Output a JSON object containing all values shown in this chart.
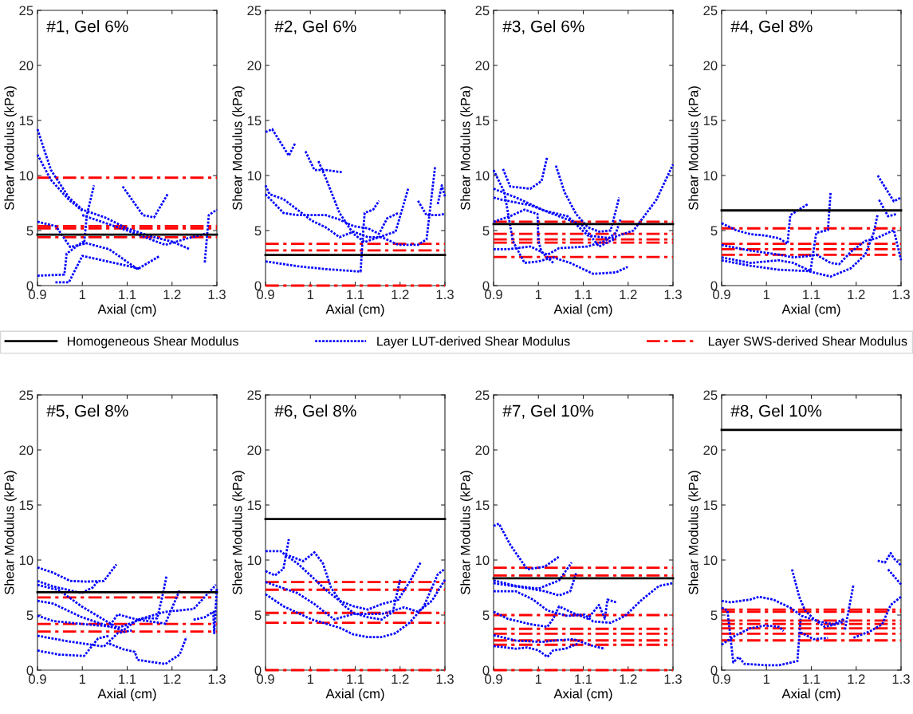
{
  "chart_data": [
    {
      "type": "line",
      "title": "#1, Gel 6%",
      "xlabel": "Axial (cm)",
      "ylabel": "Shear Modulus (kPa)",
      "xlim": [
        0.9,
        1.3
      ],
      "ylim": [
        0,
        25
      ],
      "xticks": [
        0.9,
        1,
        1.1,
        1.2,
        1.3
      ],
      "yticks": [
        0,
        5,
        10,
        15,
        20,
        25
      ],
      "grid": false,
      "legend": "bottom",
      "series": [
        {
          "name": "Homogeneous Shear Modulus",
          "color": "#000000",
          "line_style": "solid",
          "x": [
            0.9,
            1.3
          ],
          "values": [
            4.63,
            4.63
          ]
        },
        {
          "name": "Layer LUT-derived Shear Modulus",
          "color": "#0000ff",
          "line_style": "dotted",
          "x": [
            0.9,
            0.93,
            0.97,
            1.0,
            1.05,
            1.1,
            1.15,
            1.2,
            1.24
          ],
          "values": [
            14.2,
            10.5,
            8.0,
            6.9,
            6.2,
            5.2,
            4.5,
            4.0,
            3.3
          ]
        },
        {
          "color": "#0000ff",
          "line_style": "dotted",
          "x": [
            0.9,
            0.93,
            0.97,
            1.0
          ],
          "values": [
            11.9,
            9.6,
            7.8,
            6.8
          ]
        },
        {
          "color": "#0000ff",
          "line_style": "dotted",
          "x": [
            0.9,
            0.941,
            0.973,
            1.004,
            1.01,
            1.026
          ],
          "values": [
            5.8,
            5.4,
            3.5,
            3.8,
            6.4,
            9.1
          ]
        },
        {
          "color": "#0000ff",
          "line_style": "dotted",
          "x": [
            0.9,
            0.96,
            0.965,
            1.0,
            1.06,
            1.123,
            1.173
          ],
          "values": [
            0.9,
            1.0,
            2.9,
            3.95,
            3.3,
            1.5,
            2.7
          ]
        },
        {
          "color": "#0000ff",
          "line_style": "dotted",
          "x": [
            0.94,
            0.97,
            1.0,
            1.1,
            1.13
          ],
          "values": [
            0.3,
            0.3,
            2.7,
            1.8,
            1.5
          ]
        },
        {
          "color": "#0000ff",
          "line_style": "dotted",
          "x": [
            1.09,
            1.135,
            1.16,
            1.19
          ],
          "values": [
            9.0,
            6.4,
            6.2,
            8.3
          ]
        },
        {
          "color": "#0000ff",
          "line_style": "dotted",
          "x": [
            1.0,
            1.1,
            1.185,
            1.235,
            1.273
          ],
          "values": [
            6.4,
            5.0,
            3.7,
            4.3,
            4.7
          ]
        },
        {
          "color": "#0000ff",
          "line_style": "dotted",
          "x": [
            1.273,
            1.282,
            1.3
          ],
          "values": [
            2.1,
            6.4,
            6.9
          ]
        },
        {
          "name": "Layer SWS-derived Shear Modulus",
          "color": "#ff0000",
          "line_style": "dash-dot",
          "x": [
            0.9,
            1.3
          ],
          "values": [
            9.8,
            9.8
          ]
        },
        {
          "color": "#ff0000",
          "line_style": "dash-dot",
          "x": [
            0.9,
            1.3
          ],
          "values": [
            5.4,
            5.4
          ]
        },
        {
          "color": "#ff0000",
          "line_style": "dash-dot",
          "x": [
            0.9,
            1.3
          ],
          "values": [
            5.2,
            5.2
          ]
        },
        {
          "color": "#ff0000",
          "line_style": "dash-dot",
          "x": [
            0.9,
            1.3
          ],
          "values": [
            4.4,
            4.4
          ]
        }
      ]
    },
    {
      "type": "line",
      "title": "#2, Gel 6%",
      "xlabel": "Axial (cm)",
      "ylabel": "Shear Modulus (kPa)",
      "xlim": [
        0.9,
        1.3
      ],
      "ylim": [
        0,
        25
      ],
      "xticks": [
        0.9,
        1,
        1.1,
        1.2,
        1.3
      ],
      "yticks": [
        0,
        5,
        10,
        15,
        20,
        25
      ],
      "grid": false,
      "series": [
        {
          "color": "#000000",
          "line_style": "solid",
          "x": [
            0.9,
            1.3
          ],
          "values": [
            2.78,
            2.78
          ]
        },
        {
          "color": "#0000ff",
          "line_style": "dotted",
          "x": [
            0.9,
            0.915,
            0.952,
            0.967
          ],
          "values": [
            13.95,
            14.2,
            11.8,
            13.0
          ]
        },
        {
          "color": "#0000ff",
          "line_style": "dotted",
          "x": [
            0.989,
            1.009,
            1.034,
            1.07
          ],
          "values": [
            12.2,
            10.5,
            10.5,
            10.3
          ]
        },
        {
          "color": "#0000ff",
          "line_style": "dotted",
          "x": [
            1.018,
            1.034,
            1.065,
            1.096,
            1.121,
            1.153,
            1.19,
            1.218
          ],
          "values": [
            11.3,
            9.8,
            6.6,
            4.7,
            3.95,
            4.4,
            4.9,
            8.8
          ]
        },
        {
          "color": "#0000ff",
          "line_style": "dotted",
          "x": [
            0.9,
            0.971,
            1.034,
            1.112,
            1.116,
            1.121,
            1.14,
            1.153
          ],
          "values": [
            2.2,
            1.76,
            1.5,
            1.27,
            3.95,
            6.6,
            6.9,
            7.7
          ]
        },
        {
          "color": "#0000ff",
          "line_style": "dotted",
          "x": [
            0.9,
            0.909,
            0.94,
            0.971,
            1.003,
            1.034,
            1.065,
            1.096,
            1.128,
            1.159,
            1.196,
            1.24,
            1.259,
            1.278
          ],
          "values": [
            9.1,
            8.3,
            7.85,
            6.9,
            5.9,
            5.3,
            4.4,
            4.9,
            4.4,
            4.4,
            3.7,
            3.7,
            4.2,
            10.8
          ]
        },
        {
          "color": "#0000ff",
          "line_style": "dotted",
          "x": [
            0.9,
            0.94,
            0.971,
            1.034,
            1.065,
            1.096,
            1.128,
            1.153,
            1.171,
            1.196
          ],
          "values": [
            8.3,
            6.6,
            6.4,
            6.4,
            6.0,
            5.4,
            5.2,
            4.7,
            6.1,
            6.6
          ]
        },
        {
          "color": "#0000ff",
          "line_style": "dotted",
          "x": [
            1.24,
            1.259,
            1.284,
            1.3
          ],
          "values": [
            7.7,
            6.4,
            6.4,
            6.5
          ]
        },
        {
          "color": "#0000ff",
          "line_style": "dotted",
          "x": [
            1.284,
            1.293,
            1.3
          ],
          "values": [
            7.4,
            9.1,
            8.1
          ]
        },
        {
          "color": "#ff0000",
          "line_style": "dash-dot",
          "x": [
            0.9,
            1.3
          ],
          "values": [
            3.8,
            3.8
          ]
        },
        {
          "color": "#ff0000",
          "line_style": "dash-dot",
          "x": [
            0.9,
            1.3
          ],
          "values": [
            3.2,
            3.2
          ]
        },
        {
          "color": "#ff0000",
          "line_style": "dash-dot",
          "x": [
            0.9,
            1.3
          ],
          "values": [
            0,
            0
          ]
        }
      ]
    },
    {
      "type": "line",
      "title": "#3, Gel 6%",
      "xlabel": "Axial (cm)",
      "ylabel": "Shear Modulus (kPa)",
      "xlim": [
        0.9,
        1.3
      ],
      "ylim": [
        0,
        25
      ],
      "xticks": [
        0.9,
        1,
        1.1,
        1.2,
        1.3
      ],
      "yticks": [
        0,
        5,
        10,
        15,
        20,
        25
      ],
      "grid": false,
      "series": [
        {
          "color": "#000000",
          "line_style": "solid",
          "x": [
            0.9,
            1.3
          ],
          "values": [
            5.59,
            5.59
          ]
        },
        {
          "color": "#0000ff",
          "line_style": "dotted",
          "x": [
            0.9,
            0.924,
            0.943,
            0.969,
            1.0,
            1.033,
            1.071,
            1.122,
            1.173,
            1.199
          ],
          "values": [
            10.5,
            8.5,
            4.05,
            2.06,
            2.2,
            2.56,
            2.06,
            1.07,
            1.2,
            1.7
          ]
        },
        {
          "color": "#0000ff",
          "line_style": "dotted",
          "x": [
            0.921,
            0.937,
            0.982,
            1.007,
            1.019
          ],
          "values": [
            10.6,
            9.0,
            8.8,
            9.5,
            11.6
          ]
        },
        {
          "color": "#0000ff",
          "line_style": "dotted",
          "x": [
            1.039,
            1.058,
            1.084,
            1.11,
            1.135,
            1.161,
            1.18
          ],
          "values": [
            10.9,
            8.5,
            6.5,
            5.3,
            4.9,
            5.0,
            8.0
          ]
        },
        {
          "color": "#0000ff",
          "line_style": "dotted",
          "x": [
            0.9,
            0.95,
            1.014,
            1.065,
            1.11,
            1.161,
            1.212,
            1.263,
            1.3
          ],
          "values": [
            8.8,
            8.0,
            6.8,
            6.3,
            4.55,
            4.3,
            5.0,
            7.8,
            11.0
          ]
        },
        {
          "color": "#0000ff",
          "line_style": "dotted",
          "x": [
            0.9,
            0.918,
            0.982,
            1.033,
            1.097,
            1.135,
            1.173
          ],
          "values": [
            8.0,
            7.8,
            7.3,
            6.5,
            5.5,
            3.55,
            4.3
          ]
        },
        {
          "color": "#0000ff",
          "line_style": "dotted",
          "x": [
            0.9,
            0.931,
            0.982,
            1.02,
            1.046,
            1.11,
            1.148,
            1.173,
            1.183
          ],
          "values": [
            3.3,
            3.3,
            3.55,
            2.8,
            3.4,
            3.55,
            4.05,
            4.8,
            6.0
          ]
        },
        {
          "color": "#0000ff",
          "line_style": "dotted",
          "x": [
            0.9,
            0.937,
            0.969,
            0.998,
            1.0,
            1.007,
            1.033
          ],
          "values": [
            5.8,
            6.3,
            6.9,
            6.5,
            4.05,
            3.05,
            2.06
          ]
        },
        {
          "color": "#ff0000",
          "line_style": "dash-dot",
          "x": [
            0.9,
            1.3
          ],
          "values": [
            5.8,
            5.8
          ]
        },
        {
          "color": "#ff0000",
          "line_style": "dash-dot",
          "x": [
            0.9,
            1.3
          ],
          "values": [
            4.7,
            4.7
          ]
        },
        {
          "color": "#ff0000",
          "line_style": "dash-dot",
          "x": [
            0.9,
            1.3
          ],
          "values": [
            4.2,
            4.2
          ]
        },
        {
          "color": "#ff0000",
          "line_style": "dash-dot",
          "x": [
            0.9,
            1.3
          ],
          "values": [
            3.9,
            3.9
          ]
        },
        {
          "color": "#ff0000",
          "line_style": "dash-dot",
          "x": [
            0.9,
            1.3
          ],
          "values": [
            2.6,
            2.6
          ]
        }
      ]
    },
    {
      "type": "line",
      "title": "#4, Gel 8%",
      "xlabel": "Axial (cm)",
      "ylabel": "Shear Modulus (kPa)",
      "xlim": [
        0.9,
        1.3
      ],
      "ylim": [
        0,
        25
      ],
      "xticks": [
        0.9,
        1,
        1.1,
        1.2,
        1.3
      ],
      "yticks": [
        0,
        5,
        10,
        15,
        20,
        25
      ],
      "grid": false,
      "series": [
        {
          "color": "#000000",
          "line_style": "solid",
          "x": [
            0.9,
            1.3
          ],
          "values": [
            6.83,
            6.83
          ]
        },
        {
          "color": "#0000ff",
          "line_style": "dotted",
          "x": [
            0.9,
            0.932,
            0.964,
            0.996,
            1.028,
            1.047,
            1.053,
            1.092
          ],
          "values": [
            5.67,
            5.04,
            4.67,
            4.55,
            4.3,
            3.8,
            6.4,
            7.4
          ]
        },
        {
          "color": "#0000ff",
          "line_style": "dotted",
          "x": [
            0.9,
            0.964,
            1.028,
            1.06,
            1.092,
            1.111,
            1.143,
            1.162,
            1.188,
            1.22,
            1.245,
            1.284,
            1.3
          ],
          "values": [
            3.68,
            3.18,
            2.81,
            2.56,
            2.68,
            2.81,
            2.06,
            1.94,
            3.06,
            4.05,
            4.3,
            5.04,
            2.3
          ]
        },
        {
          "color": "#0000ff",
          "line_style": "dotted",
          "x": [
            0.9,
            0.964,
            1.028,
            1.06,
            1.098,
            1.111,
            1.137,
            1.143
          ],
          "values": [
            2.56,
            2.06,
            2.3,
            2.06,
            1.32,
            4.8,
            5.04,
            8.5
          ]
        },
        {
          "color": "#0000ff",
          "line_style": "dotted",
          "x": [
            0.9,
            0.964,
            1.028,
            1.092,
            1.143,
            1.188,
            1.22,
            1.239,
            1.248
          ],
          "values": [
            2.3,
            1.8,
            1.44,
            1.32,
            0.82,
            1.57,
            2.81,
            4.8,
            6.5
          ]
        },
        {
          "color": "#0000ff",
          "line_style": "dotted",
          "x": [
            1.248,
            1.271,
            1.284,
            1.3
          ],
          "values": [
            10.0,
            8.5,
            7.65,
            8.0
          ]
        },
        {
          "color": "#0000ff",
          "line_style": "dotted",
          "x": [
            1.251,
            1.271,
            1.29
          ],
          "values": [
            7.8,
            6.3,
            6.5
          ]
        },
        {
          "color": "#ff0000",
          "line_style": "dash-dot",
          "x": [
            0.9,
            1.3
          ],
          "values": [
            5.2,
            5.2
          ]
        },
        {
          "color": "#ff0000",
          "line_style": "dash-dot",
          "x": [
            0.9,
            1.3
          ],
          "values": [
            3.8,
            3.8
          ]
        },
        {
          "color": "#ff0000",
          "line_style": "dash-dot",
          "x": [
            0.9,
            1.3
          ],
          "values": [
            3.3,
            3.3
          ]
        },
        {
          "color": "#ff0000",
          "line_style": "dash-dot",
          "x": [
            0.9,
            1.3
          ],
          "values": [
            2.8,
            2.8
          ]
        }
      ]
    },
    {
      "type": "line",
      "title": "#5, Gel 8%",
      "xlabel": "Axial (cm)",
      "ylabel": "Shear Modulus (kPa)",
      "xlim": [
        0.9,
        1.3
      ],
      "ylim": [
        0,
        25
      ],
      "xticks": [
        0.9,
        1,
        1.1,
        1.2,
        1.3
      ],
      "yticks": [
        0,
        5,
        10,
        15,
        20,
        25
      ],
      "grid": false,
      "series": [
        {
          "color": "#000000",
          "line_style": "solid",
          "x": [
            0.9,
            1.3
          ],
          "values": [
            7.07,
            7.07
          ]
        },
        {
          "color": "#0000ff",
          "line_style": "dotted",
          "x": [
            0.9,
            0.935,
            0.973,
            1.01,
            1.048,
            1.076
          ],
          "values": [
            9.33,
            8.85,
            8.1,
            8.04,
            8.1,
            9.6
          ]
        },
        {
          "color": "#0000ff",
          "line_style": "dotted",
          "x": [
            0.9,
            0.935,
            0.998,
            1.023,
            1.035
          ],
          "values": [
            8.1,
            7.6,
            7.0,
            7.5,
            8.1
          ]
        },
        {
          "color": "#0000ff",
          "line_style": "dotted",
          "x": [
            0.9,
            0.948,
            0.998,
            1.048,
            1.079,
            1.098,
            1.135,
            1.167,
            1.179,
            1.188
          ],
          "values": [
            7.75,
            7.26,
            5.8,
            4.58,
            3.85,
            4.1,
            4.7,
            4.7,
            6.8,
            8.6
          ]
        },
        {
          "color": "#0000ff",
          "line_style": "dotted",
          "x": [
            0.9,
            0.935,
            0.998,
            1.06,
            1.091,
            1.123,
            1.185,
            1.248,
            1.298
          ],
          "values": [
            6.3,
            6.04,
            4.82,
            3.97,
            3.6,
            4.58,
            5.3,
            5.55,
            7.75
          ]
        },
        {
          "color": "#0000ff",
          "line_style": "dotted",
          "x": [
            0.9,
            0.935,
            0.998,
            1.06,
            1.079,
            1.123,
            1.185,
            1.217
          ],
          "values": [
            4.95,
            4.46,
            4.2,
            3.97,
            5.07,
            4.58,
            4.22,
            7.26
          ]
        },
        {
          "color": "#0000ff",
          "line_style": "dotted",
          "x": [
            0.9,
            0.966,
            1.048,
            1.079,
            1.11
          ],
          "values": [
            3.12,
            2.63,
            2.14,
            3.36,
            3.6
          ]
        },
        {
          "color": "#0000ff",
          "line_style": "dotted",
          "x": [
            0.9,
            0.948,
            1.004,
            1.035,
            1.06
          ],
          "values": [
            1.78,
            1.41,
            1.29,
            2.88,
            3.12
          ]
        },
        {
          "color": "#0000ff",
          "line_style": "dotted",
          "x": [
            1.06,
            1.091,
            1.117,
            1.123,
            1.185,
            1.217,
            1.232
          ],
          "values": [
            2.4,
            1.9,
            1.66,
            0.93,
            0.56,
            1.41,
            3.0
          ]
        },
        {
          "color": "#0000ff",
          "line_style": "dotted",
          "x": [
            1.248,
            1.273,
            1.292,
            1.294,
            1.3
          ],
          "values": [
            4.58,
            4.8,
            5.3,
            3.36,
            7.5
          ]
        },
        {
          "color": "#ff0000",
          "line_style": "dash-dot",
          "x": [
            0.9,
            1.3
          ],
          "values": [
            6.6,
            6.6
          ]
        },
        {
          "color": "#ff0000",
          "line_style": "dash-dot",
          "x": [
            0.9,
            1.3
          ],
          "values": [
            4.2,
            4.2
          ]
        },
        {
          "color": "#ff0000",
          "line_style": "dash-dot",
          "x": [
            0.9,
            1.3
          ],
          "values": [
            3.5,
            3.5
          ]
        }
      ]
    },
    {
      "type": "line",
      "title": "#6, Gel 8%",
      "xlabel": "Axial (cm)",
      "ylabel": "Shear Modulus (kPa)",
      "xlim": [
        0.9,
        1.3
      ],
      "ylim": [
        0,
        25
      ],
      "xticks": [
        0.9,
        1,
        1.1,
        1.2,
        1.3
      ],
      "yticks": [
        0,
        5,
        10,
        15,
        20,
        25
      ],
      "grid": false,
      "series": [
        {
          "color": "#000000",
          "line_style": "solid",
          "x": [
            0.9,
            1.3
          ],
          "values": [
            13.72,
            13.72
          ]
        },
        {
          "color": "#0000ff",
          "line_style": "dotted",
          "x": [
            0.9,
            0.934,
            0.946,
            0.971,
            1.003,
            1.034,
            1.065,
            1.096,
            1.128,
            1.159,
            1.196,
            1.221,
            1.246
          ],
          "values": [
            10.8,
            10.8,
            10.4,
            9.7,
            8.5,
            7.3,
            6.3,
            5.8,
            5.5,
            6.0,
            6.4,
            8.0,
            9.8
          ]
        },
        {
          "color": "#0000ff",
          "line_style": "dotted",
          "x": [
            0.9,
            0.921,
            0.94,
            0.952
          ],
          "values": [
            9.0,
            8.6,
            9.2,
            11.9
          ]
        },
        {
          "color": "#0000ff",
          "line_style": "dotted",
          "x": [
            0.952,
            0.984,
            1.009,
            1.028,
            1.046,
            1.071,
            1.096,
            1.128,
            1.159,
            1.184,
            1.2
          ],
          "values": [
            10.4,
            9.9,
            10.7,
            9.7,
            7.5,
            6.0,
            5.2,
            4.8,
            4.6,
            5.3,
            8.2
          ]
        },
        {
          "color": "#0000ff",
          "line_style": "dotted",
          "x": [
            0.9,
            0.971,
            1.009,
            1.034,
            1.053,
            1.096,
            1.159,
            1.209,
            1.24,
            1.271,
            1.3
          ],
          "values": [
            8.0,
            7.0,
            6.0,
            5.2,
            4.6,
            5.1,
            5.1,
            5.7,
            5.3,
            6.3,
            8.2
          ]
        },
        {
          "color": "#0000ff",
          "line_style": "dotted",
          "x": [
            0.9,
            0.94,
            1.003,
            1.065,
            1.096,
            1.128,
            1.159,
            1.19,
            1.221,
            1.253,
            1.284,
            1.3
          ],
          "values": [
            6.9,
            5.8,
            4.6,
            3.85,
            3.24,
            3.0,
            3.0,
            3.36,
            4.3,
            5.8,
            8.7,
            9.2
          ]
        },
        {
          "color": "#ff0000",
          "line_style": "dash-dot",
          "x": [
            0.9,
            1.3
          ],
          "values": [
            8.0,
            8.0
          ]
        },
        {
          "color": "#ff0000",
          "line_style": "dash-dot",
          "x": [
            0.9,
            1.3
          ],
          "values": [
            7.3,
            7.3
          ]
        },
        {
          "color": "#ff0000",
          "line_style": "dash-dot",
          "x": [
            0.9,
            1.3
          ],
          "values": [
            5.2,
            5.2
          ]
        },
        {
          "color": "#ff0000",
          "line_style": "dash-dot",
          "x": [
            0.9,
            1.3
          ],
          "values": [
            4.3,
            4.3
          ]
        },
        {
          "color": "#ff0000",
          "line_style": "dash-dot",
          "x": [
            0.9,
            1.3
          ],
          "values": [
            0,
            0
          ]
        }
      ]
    },
    {
      "type": "line",
      "title": "#7, Gel 10%",
      "xlabel": "Axial (cm)",
      "ylabel": "Shear Modulus (kPa)",
      "xlim": [
        0.9,
        1.3
      ],
      "ylim": [
        0,
        25
      ],
      "xticks": [
        0.9,
        1,
        1.1,
        1.2,
        1.3
      ],
      "yticks": [
        0,
        5,
        10,
        15,
        20,
        25
      ],
      "grid": false,
      "series": [
        {
          "color": "#000000",
          "line_style": "solid",
          "x": [
            0.9,
            1.3
          ],
          "values": [
            8.35,
            8.35
          ]
        },
        {
          "color": "#0000ff",
          "line_style": "dotted",
          "x": [
            0.9,
            0.912,
            0.937,
            0.975,
            1.014,
            1.046
          ],
          "values": [
            13.1,
            13.3,
            11.4,
            9.15,
            9.4,
            10.3
          ]
        },
        {
          "color": "#0000ff",
          "line_style": "dotted",
          "x": [
            0.9,
            0.95,
            1.0,
            1.046,
            1.074
          ],
          "values": [
            8.15,
            7.65,
            7.4,
            8.15,
            9.77
          ]
        },
        {
          "color": "#0000ff",
          "line_style": "dotted",
          "x": [
            0.9,
            0.982,
            1.014,
            1.046,
            1.071,
            1.084
          ],
          "values": [
            7.9,
            7.4,
            7.16,
            6.78,
            7.16,
            8.8
          ]
        },
        {
          "color": "#0000ff",
          "line_style": "dotted",
          "x": [
            0.9,
            0.95,
            0.988,
            1.02,
            1.065,
            1.103,
            1.122,
            1.161,
            1.193,
            1.231,
            1.269,
            1.3
          ],
          "values": [
            7.16,
            7.16,
            6.41,
            5.42,
            4.92,
            5.04,
            4.42,
            4.3,
            4.92,
            6.41,
            7.65,
            7.9
          ]
        },
        {
          "color": "#0000ff",
          "line_style": "dotted",
          "x": [
            0.9,
            0.931,
            0.982,
            1.02,
            1.033,
            1.046,
            1.078,
            1.11,
            1.135,
            1.148,
            1.154,
            1.173
          ],
          "values": [
            5.3,
            4.67,
            4.17,
            3.93,
            4.67,
            5.79,
            5.17,
            4.67,
            5.92,
            4.67,
            6.41,
            6.16
          ]
        },
        {
          "color": "#0000ff",
          "line_style": "dotted",
          "x": [
            0.9,
            0.95,
            1.008,
            1.033,
            1.078,
            1.122,
            1.148
          ],
          "values": [
            3.18,
            2.68,
            2.56,
            2.68,
            2.81,
            2.19,
            1.94
          ]
        },
        {
          "color": "#0000ff",
          "line_style": "dotted",
          "x": [
            0.9,
            0.95,
            0.975,
            1.0,
            1.02,
            1.033,
            1.06,
            1.09
          ],
          "values": [
            2.19,
            1.94,
            2.06,
            1.8,
            1.2,
            1.8,
            1.94,
            2.44
          ]
        },
        {
          "color": "#ff0000",
          "line_style": "dash-dot",
          "x": [
            0.9,
            1.3
          ],
          "values": [
            9.3,
            9.3
          ]
        },
        {
          "color": "#ff0000",
          "line_style": "dash-dot",
          "x": [
            0.9,
            1.3
          ],
          "values": [
            8.6,
            8.6
          ]
        },
        {
          "color": "#ff0000",
          "line_style": "dash-dot",
          "x": [
            0.9,
            1.3
          ],
          "values": [
            5.0,
            5.0
          ]
        },
        {
          "color": "#ff0000",
          "line_style": "dash-dot",
          "x": [
            0.9,
            1.3
          ],
          "values": [
            3.75,
            3.75
          ]
        },
        {
          "color": "#ff0000",
          "line_style": "dash-dot",
          "x": [
            0.9,
            1.3
          ],
          "values": [
            3.3,
            3.3
          ]
        },
        {
          "color": "#ff0000",
          "line_style": "dash-dot",
          "x": [
            0.9,
            1.3
          ],
          "values": [
            2.7,
            2.7
          ]
        },
        {
          "color": "#ff0000",
          "line_style": "dash-dot",
          "x": [
            0.9,
            1.3
          ],
          "values": [
            2.3,
            2.3
          ]
        },
        {
          "color": "#ff0000",
          "line_style": "dash-dot",
          "x": [
            0.9,
            1.3
          ],
          "values": [
            0,
            0
          ]
        }
      ]
    },
    {
      "type": "line",
      "title": "#8, Gel 10%",
      "xlabel": "Axial (cm)",
      "ylabel": "Shear Modulus (kPa)",
      "xlim": [
        0.9,
        1.3
      ],
      "ylim": [
        0,
        25
      ],
      "xticks": [
        0.9,
        1,
        1.1,
        1.2,
        1.3
      ],
      "yticks": [
        0,
        5,
        10,
        15,
        20,
        25
      ],
      "grid": false,
      "series": [
        {
          "color": "#000000",
          "line_style": "solid",
          "x": [
            0.9,
            1.3
          ],
          "values": [
            21.82,
            21.82
          ]
        },
        {
          "color": "#0000ff",
          "line_style": "dotted",
          "x": [
            0.9,
            0.919,
            0.964,
            0.983,
            1.015,
            1.053,
            1.079,
            1.117,
            1.149,
            1.174
          ],
          "values": [
            6.29,
            6.16,
            6.41,
            6.66,
            6.41,
            5.67,
            4.92,
            4.42,
            4.17,
            4.67
          ]
        },
        {
          "color": "#0000ff",
          "line_style": "dotted",
          "x": [
            0.9,
            0.932,
            0.964,
            0.996,
            1.028,
            1.038
          ],
          "values": [
            2.31,
            3.18,
            3.8,
            4.05,
            3.93,
            3.55
          ]
        },
        {
          "color": "#0000ff",
          "line_style": "dotted",
          "x": [
            0.9,
            0.913,
            0.926,
            0.938,
            0.951,
            0.996,
            1.028,
            1.069,
            1.076
          ],
          "values": [
            5.67,
            5.42,
            0.7,
            1.19,
            0.57,
            0.45,
            0.45,
            0.82,
            4.67
          ]
        },
        {
          "color": "#0000ff",
          "line_style": "dotted",
          "x": [
            1.057,
            1.073,
            1.086,
            1.105,
            1.13,
            1.156,
            1.174
          ],
          "values": [
            9.15,
            6.66,
            5.42,
            4.67,
            3.93,
            4.17,
            4.42
          ]
        },
        {
          "color": "#0000ff",
          "line_style": "dotted",
          "x": [
            1.076,
            1.105,
            1.137
          ],
          "values": [
            3.43,
            2.81,
            2.93
          ]
        },
        {
          "color": "#0000ff",
          "line_style": "dotted",
          "x": [
            1.175,
            1.194
          ],
          "values": [
            3.68,
            7.78
          ]
        },
        {
          "color": "#0000ff",
          "line_style": "dotted",
          "x": [
            1.194,
            1.232,
            1.258,
            1.277,
            1.3
          ],
          "values": [
            2.93,
            3.55,
            4.17,
            5.92,
            6.66
          ]
        },
        {
          "color": "#0000ff",
          "line_style": "dotted",
          "x": [
            1.248,
            1.264,
            1.277,
            1.284,
            1.3
          ],
          "values": [
            9.94,
            9.77,
            10.63,
            10.14,
            9.52
          ]
        },
        {
          "color": "#0000ff",
          "line_style": "dotted",
          "x": [
            1.271,
            1.3
          ],
          "values": [
            9.15,
            7.78
          ]
        },
        {
          "color": "#ff0000",
          "line_style": "dash-dot",
          "x": [
            0.9,
            1.3
          ],
          "values": [
            5.5,
            5.5
          ]
        },
        {
          "color": "#ff0000",
          "line_style": "dash-dot",
          "x": [
            0.9,
            1.3
          ],
          "values": [
            5.3,
            5.3
          ]
        },
        {
          "color": "#ff0000",
          "line_style": "dash-dot",
          "x": [
            0.9,
            1.3
          ],
          "values": [
            4.5,
            4.5
          ]
        },
        {
          "color": "#ff0000",
          "line_style": "dash-dot",
          "x": [
            0.9,
            1.3
          ],
          "values": [
            4.2,
            4.2
          ]
        },
        {
          "color": "#ff0000",
          "line_style": "dash-dot",
          "x": [
            0.9,
            1.3
          ],
          "values": [
            3.8,
            3.8
          ]
        },
        {
          "color": "#ff0000",
          "line_style": "dash-dot",
          "x": [
            0.9,
            1.3
          ],
          "values": [
            3.3,
            3.3
          ]
        },
        {
          "color": "#ff0000",
          "line_style": "dash-dot",
          "x": [
            0.9,
            1.3
          ],
          "values": [
            2.7,
            2.7
          ]
        }
      ]
    }
  ]
}
